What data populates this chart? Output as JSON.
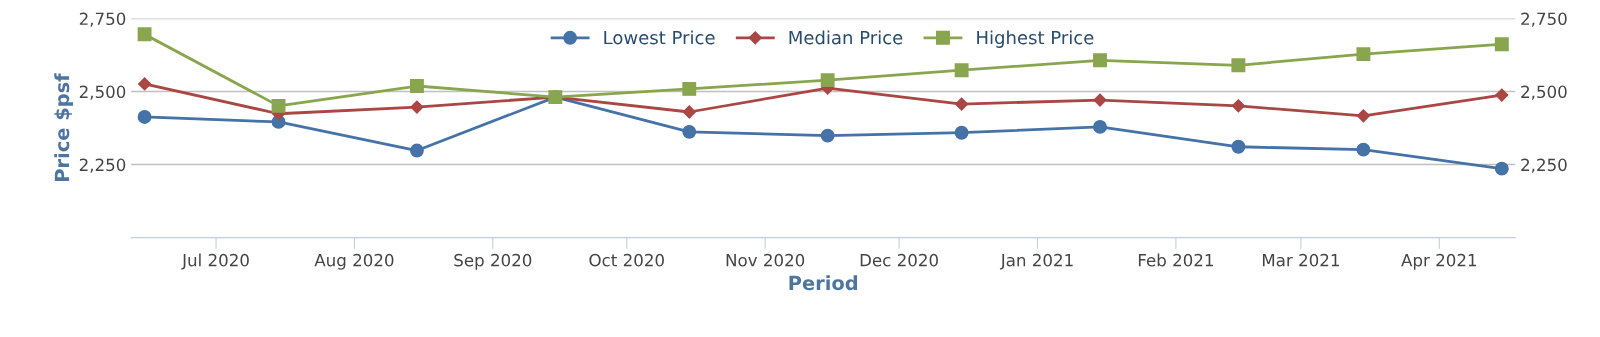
{
  "chart_data": {
    "type": "line",
    "xlabel": "Period",
    "ylabel": "Price $psf",
    "x": [
      "2020-06-15",
      "2020-07-15",
      "2020-08-15",
      "2020-09-15",
      "2020-10-15",
      "2020-11-15",
      "2020-12-15",
      "2021-01-15",
      "2021-02-15",
      "2021-03-15",
      "2021-04-15"
    ],
    "series": [
      {
        "name": "Lowest Price",
        "color": "#4572a7",
        "marker": "circle",
        "values": [
          2413,
          2396,
          2298,
          2481,
          2362,
          2349,
          2359,
          2379,
          2311,
          2301,
          2236
        ]
      },
      {
        "name": "Median Price",
        "color": "#aa4643",
        "marker": "diamond",
        "values": [
          2526,
          2424,
          2447,
          2481,
          2430,
          2512,
          2457,
          2471,
          2451,
          2417,
          2488
        ]
      },
      {
        "name": "Highest Price",
        "color": "#89a54e",
        "marker": "square",
        "values": [
          2696,
          2451,
          2519,
          2481,
          2509,
          2539,
          2573,
          2607,
          2590,
          2628,
          2662
        ]
      }
    ],
    "xlim": [
      "2020-06-12",
      "2021-04-18"
    ],
    "xticks": [
      {
        "value": "2020-07-01",
        "label": "Jul 2020"
      },
      {
        "value": "2020-08-01",
        "label": "Aug 2020"
      },
      {
        "value": "2020-09-01",
        "label": "Sep 2020"
      },
      {
        "value": "2020-10-01",
        "label": "Oct 2020"
      },
      {
        "value": "2020-11-01",
        "label": "Nov 2020"
      },
      {
        "value": "2020-12-01",
        "label": "Dec 2020"
      },
      {
        "value": "2021-01-01",
        "label": "Jan 2021"
      },
      {
        "value": "2021-02-01",
        "label": "Feb 2021"
      },
      {
        "value": "2021-03-01",
        "label": "Mar 2021"
      },
      {
        "value": "2021-04-01",
        "label": "Apr 2021"
      }
    ],
    "ylim": [
      2000,
      2750
    ],
    "yticks": [
      {
        "value": 2250,
        "label": "2,250"
      },
      {
        "value": 2500,
        "label": "2,500"
      },
      {
        "value": 2750,
        "label": "2,750"
      }
    ],
    "y2lim": [
      2000,
      2750
    ],
    "y2ticks": [
      {
        "value": 2250,
        "label": "2,250"
      },
      {
        "value": 2500,
        "label": "2,500"
      },
      {
        "value": 2750,
        "label": "2,750"
      }
    ],
    "grid": "y",
    "legend": "top",
    "line_style": "solid"
  }
}
